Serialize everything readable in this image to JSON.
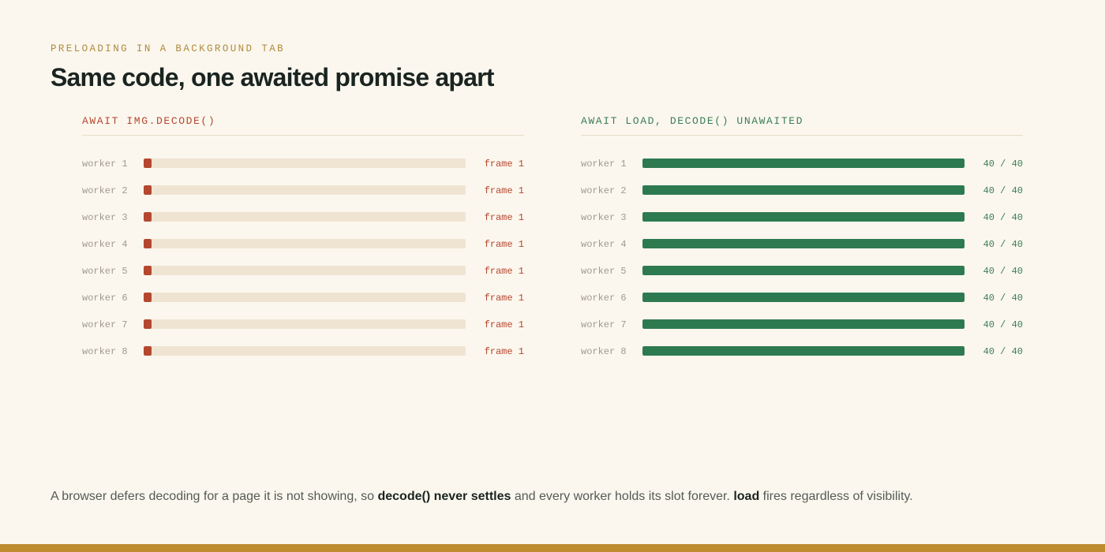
{
  "header": {
    "eyebrow": "PRELOADING IN A BACKGROUND TAB",
    "title": "Same code, one awaited promise apart"
  },
  "chart_data": [
    {
      "type": "bar",
      "orientation": "horizontal",
      "title": "AWAIT IMG.DECODE()",
      "color": "#b5472e",
      "categories": [
        "worker 1",
        "worker 2",
        "worker 3",
        "worker 4",
        "worker 5",
        "worker 6",
        "worker 7",
        "worker 8"
      ],
      "values": [
        1,
        1,
        1,
        1,
        1,
        1,
        1,
        1
      ],
      "value_labels": [
        "frame 1",
        "frame 1",
        "frame 1",
        "frame 1",
        "frame 1",
        "frame 1",
        "frame 1",
        "frame 1"
      ],
      "xlim": [
        0,
        40
      ]
    },
    {
      "type": "bar",
      "orientation": "horizontal",
      "title": "AWAIT LOAD, DECODE() UNAWAITED",
      "color": "#2e7a50",
      "categories": [
        "worker 1",
        "worker 2",
        "worker 3",
        "worker 4",
        "worker 5",
        "worker 6",
        "worker 7",
        "worker 8"
      ],
      "values": [
        40,
        40,
        40,
        40,
        40,
        40,
        40,
        40
      ],
      "value_labels": [
        "40 / 40",
        "40 / 40",
        "40 / 40",
        "40 / 40",
        "40 / 40",
        "40 / 40",
        "40 / 40",
        "40 / 40"
      ],
      "xlim": [
        0,
        40
      ]
    }
  ],
  "caption": {
    "part1": "A browser defers decoding for a page it is not showing, so ",
    "bold1": "decode() never settles",
    "part2": " and every worker holds its slot forever. ",
    "bold2": "load",
    "part3": " fires regardless of visibility."
  },
  "colors": {
    "background": "#fbf7ee",
    "accent": "#be8c2e",
    "stalled": "#b5472e",
    "complete": "#2e7a50",
    "track": "#efe4d2"
  }
}
